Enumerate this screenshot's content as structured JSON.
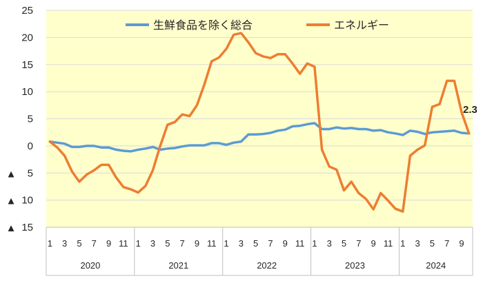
{
  "chart_data": {
    "type": "line",
    "years": [
      {
        "label": "2020",
        "months": 12
      },
      {
        "label": "2021",
        "months": 12
      },
      {
        "label": "2022",
        "months": 12
      },
      {
        "label": "2023",
        "months": 12
      },
      {
        "label": "2024",
        "months": 10
      }
    ],
    "x_tick_labels": [
      "1",
      "3",
      "5",
      "7",
      "9",
      "11",
      "1",
      "3",
      "5",
      "7",
      "9",
      "11",
      "1",
      "3",
      "5",
      "7",
      "9",
      "11",
      "1",
      "3",
      "5",
      "7",
      "9",
      "11",
      "1",
      "3",
      "5",
      "7",
      "9"
    ],
    "y_tick_labels": [
      {
        "value": 25,
        "label": "25"
      },
      {
        "value": 20,
        "label": "20"
      },
      {
        "value": 15,
        "label": "15"
      },
      {
        "value": 10,
        "label": "10"
      },
      {
        "value": 5,
        "label": "5"
      },
      {
        "value": 0,
        "label": "0"
      },
      {
        "value": -5,
        "label": "5",
        "marker": "▲"
      },
      {
        "value": -10,
        "label": "10",
        "marker": "▲"
      },
      {
        "value": -15,
        "label": "15",
        "marker": "▲"
      }
    ],
    "ylim": [
      -15,
      25
    ],
    "grid": true,
    "legend_position": "top",
    "series": [
      {
        "name": "生鮮食品を除く総合",
        "color": "#5b9bd5",
        "values": [
          0.8,
          0.6,
          0.4,
          -0.2,
          -0.2,
          0.0,
          0.0,
          -0.3,
          -0.3,
          -0.7,
          -0.9,
          -1.0,
          -0.7,
          -0.5,
          -0.2,
          -0.7,
          -0.5,
          -0.4,
          -0.1,
          0.1,
          0.1,
          0.1,
          0.5,
          0.5,
          0.2,
          0.6,
          0.8,
          2.1,
          2.1,
          2.2,
          2.4,
          2.8,
          3.0,
          3.6,
          3.7,
          4.0,
          4.2,
          3.1,
          3.1,
          3.4,
          3.2,
          3.3,
          3.1,
          3.1,
          2.8,
          2.9,
          2.5,
          2.3,
          2.0,
          2.8,
          2.6,
          2.2,
          2.5,
          2.6,
          2.7,
          2.8,
          2.4,
          2.3
        ]
      },
      {
        "name": "エネルギー",
        "color": "#ed7d31",
        "values": [
          0.8,
          -0.3,
          -1.8,
          -4.7,
          -6.6,
          -5.3,
          -4.5,
          -3.5,
          -3.5,
          -5.8,
          -7.6,
          -8.0,
          -8.6,
          -7.4,
          -4.5,
          0.0,
          3.9,
          4.4,
          5.8,
          5.5,
          7.5,
          11.3,
          15.6,
          16.3,
          17.9,
          20.5,
          20.8,
          19.1,
          17.1,
          16.5,
          16.2,
          16.9,
          16.9,
          15.2,
          13.3,
          15.2,
          14.6,
          -0.7,
          -3.8,
          -4.4,
          -8.2,
          -6.6,
          -8.7,
          -9.8,
          -11.7,
          -8.7,
          -10.1,
          -11.6,
          -12.1,
          -1.8,
          -0.7,
          0.1,
          7.2,
          7.7,
          12.0,
          12.0,
          6.2,
          2.3
        ]
      }
    ],
    "annotations": [
      {
        "text": "2.3",
        "series": 1,
        "index": 57
      }
    ]
  }
}
